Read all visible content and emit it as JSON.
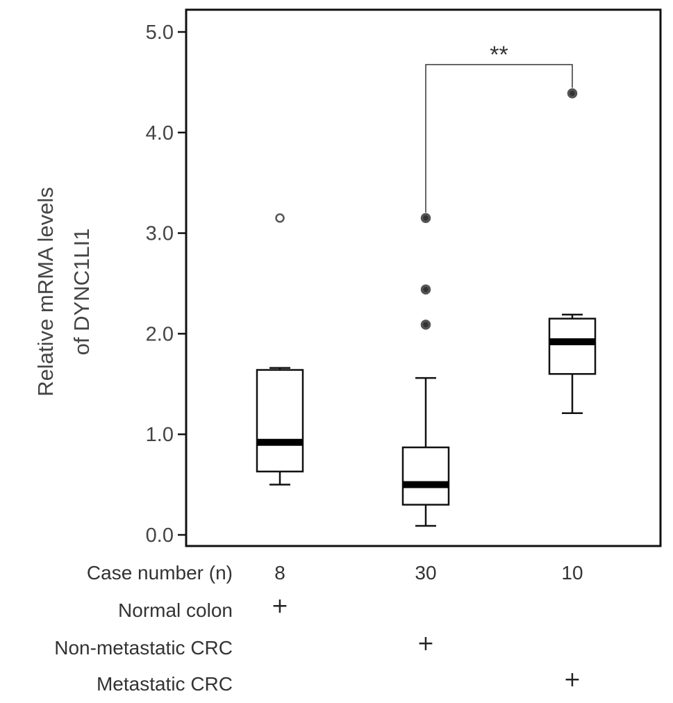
{
  "chart_data": {
    "type": "box",
    "ylabel_lines": [
      "Relative mRMA levels",
      "of DYNC1LI1"
    ],
    "ylim": [
      0,
      5.0
    ],
    "yticks": [
      0.0,
      1.0,
      2.0,
      3.0,
      4.0,
      5.0
    ],
    "ytick_labels": [
      "0.0",
      "1.0",
      "2.0",
      "3.0",
      "4.0",
      "5.0"
    ],
    "grid": false,
    "groups": [
      {
        "case_number": "8",
        "whisker_low": 0.5,
        "q1": 0.63,
        "median": 0.92,
        "q3": 1.64,
        "whisker_high": 1.66,
        "outliers": [
          3.15
        ],
        "outlier_style": "open"
      },
      {
        "case_number": "30",
        "whisker_low": 0.09,
        "q1": 0.3,
        "median": 0.5,
        "q3": 0.87,
        "whisker_high": 1.56,
        "outliers": [
          3.15,
          2.44,
          2.09
        ],
        "outlier_style": "filled"
      },
      {
        "case_number": "10",
        "whisker_low": 1.21,
        "q1": 1.6,
        "median": 1.92,
        "q3": 2.15,
        "whisker_high": 2.19,
        "outliers": [
          4.39
        ],
        "outlier_style": "filled"
      }
    ],
    "significance": {
      "between": [
        1,
        2
      ],
      "label": "**"
    },
    "table": {
      "header": "Case number (n)",
      "rows": [
        {
          "label": "Normal colon",
          "marks": [
            true,
            false,
            false
          ]
        },
        {
          "label": "Non-metastatic CRC",
          "marks": [
            false,
            true,
            false
          ]
        },
        {
          "label": "Metastatic CRC",
          "marks": [
            false,
            false,
            true
          ]
        }
      ],
      "mark_symbol": "+"
    }
  }
}
